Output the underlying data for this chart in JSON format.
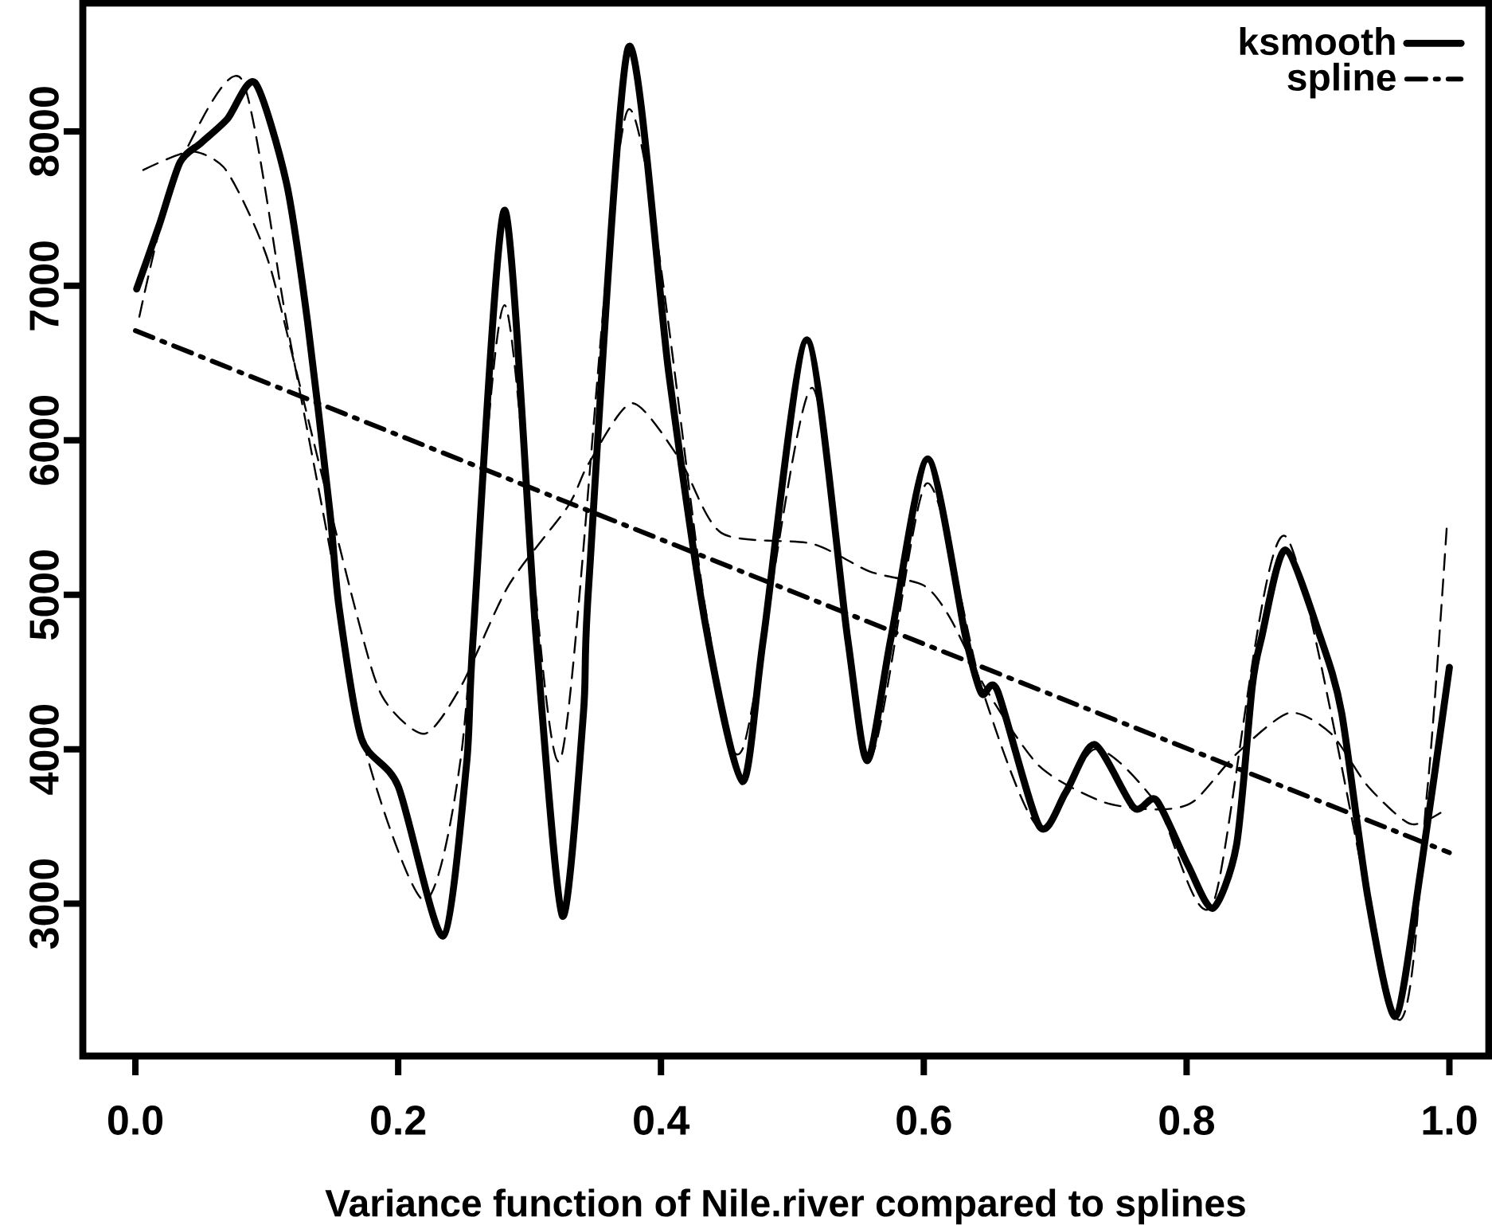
{
  "chart_data": {
    "type": "line",
    "xlabel": "Variance function of Nile.river compared to splines",
    "xlim": [
      -0.04,
      1.03
    ],
    "ylim": [
      2013,
      8830
    ],
    "xticks": [
      {
        "value": 0,
        "label": "0.0"
      },
      0.2,
      0.4,
      0.6,
      0.8,
      {
        "value": 1,
        "label": "1.0"
      }
    ],
    "yticks": [
      3000,
      4000,
      5000,
      6000,
      7000,
      8000
    ],
    "legend": "top right",
    "grid": false,
    "marker": "none",
    "series": [
      {
        "name": "ksmooth",
        "color": "#000000",
        "line_style": "solid",
        "x": [
          0.001,
          0.018,
          0.034,
          0.05,
          0.07,
          0.091,
          0.115,
          0.131,
          0.148,
          0.155,
          0.172,
          0.2,
          0.234,
          0.252,
          0.257,
          0.281,
          0.305,
          0.325,
          0.341,
          0.345,
          0.375,
          0.406,
          0.434,
          0.462,
          0.478,
          0.511,
          0.542,
          0.557,
          0.575,
          0.603,
          0.632,
          0.644,
          0.656,
          0.688,
          0.708,
          0.73,
          0.76,
          0.777,
          0.801,
          0.82,
          0.838,
          0.85,
          0.857,
          0.875,
          0.902,
          0.918,
          0.938,
          0.959,
          0.978,
          1.0
        ],
        "values": [
          6980,
          7390,
          7800,
          7925,
          8080,
          8315,
          7665,
          6770,
          5540,
          4920,
          4070,
          3760,
          2790,
          3900,
          4720,
          7490,
          4720,
          2920,
          4235,
          5060,
          8540,
          6430,
          4800,
          3790,
          4720,
          6650,
          4720,
          3925,
          4720,
          5880,
          4720,
          4360,
          4380,
          3500,
          3720,
          4030,
          3620,
          3670,
          3250,
          2970,
          3380,
          4410,
          4720,
          5290,
          4720,
          4235,
          3040,
          2270,
          3205,
          4530
        ]
      },
      {
        "color": "#000000",
        "line_style": "dashed",
        "x": [
          0.003,
          0.018,
          0.038,
          0.081,
          0.115,
          0.148,
          0.176,
          0.22,
          0.248,
          0.281,
          0.323,
          0.375,
          0.434,
          0.462,
          0.515,
          0.557,
          0.602,
          0.644,
          0.688,
          0.73,
          0.777,
          0.82,
          0.875,
          0.959,
          0.983,
          0.998
        ],
        "values": [
          6800,
          7350,
          7870,
          8335,
          6770,
          5300,
          3965,
          3020,
          3965,
          6875,
          3925,
          8140,
          4900,
          4000,
          6340,
          3925,
          5720,
          4400,
          3490,
          4000,
          3650,
          3000,
          5380,
          2270,
          3720,
          5440
        ]
      },
      {
        "color": "#000000",
        "line_style": "dashed",
        "x": [
          0.006,
          0.042,
          0.067,
          0.087,
          0.103,
          0.123,
          0.167,
          0.188,
          0.22,
          0.248,
          0.284,
          0.329,
          0.345,
          0.378,
          0.414,
          0.446,
          0.515,
          0.559,
          0.6,
          0.62,
          0.648,
          0.688,
          0.736,
          0.777,
          0.805,
          0.838,
          0.878,
          0.91,
          0.938,
          0.971,
          0.999
        ],
        "values": [
          7750,
          7870,
          7770,
          7460,
          7110,
          6430,
          4920,
          4340,
          4100,
          4410,
          5060,
          5570,
          5850,
          6240,
          5880,
          5400,
          5330,
          5150,
          5060,
          4850,
          4380,
          3890,
          3660,
          3610,
          3660,
          3970,
          4235,
          4100,
          3760,
          3515,
          3620
        ]
      },
      {
        "name": "spline",
        "color": "#000000",
        "line_style": "dashdot",
        "x": [
          0.0,
          1.0
        ],
        "values": [
          6710,
          3330
        ]
      }
    ]
  }
}
